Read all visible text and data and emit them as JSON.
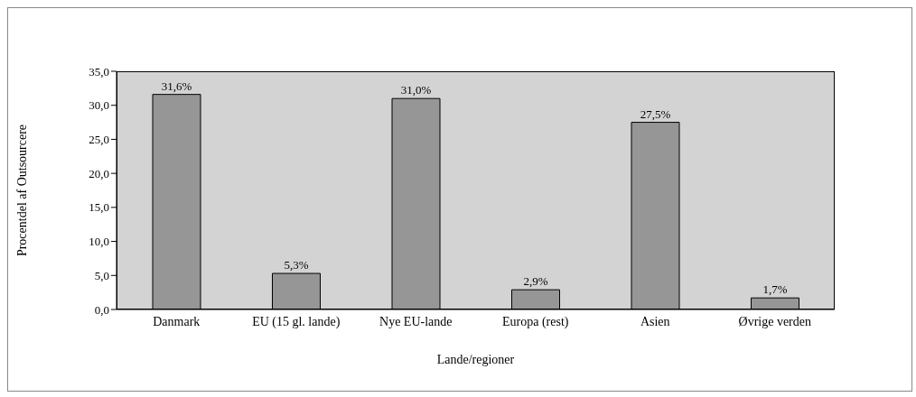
{
  "chart_data": {
    "type": "bar",
    "xlabel": "Lande/regioner",
    "ylabel": "Procentdel af Outsourcere",
    "categories": [
      "Danmark",
      "EU (15 gl. lande)",
      "Nye EU-lande",
      "Europa (rest)",
      "Asien",
      "Øvrige verden"
    ],
    "values": [
      31.6,
      5.3,
      31.0,
      2.9,
      27.5,
      1.7
    ],
    "value_labels": [
      "31,6%",
      "5,3%",
      "31,0%",
      "2,9%",
      "27,5%",
      "1,7%"
    ],
    "color": "#969696",
    "ylim": [
      0,
      35
    ],
    "yticks": [
      {
        "value": 0,
        "label": "0,0"
      },
      {
        "value": 5,
        "label": "5,0"
      },
      {
        "value": 10,
        "label": "10,0"
      },
      {
        "value": 15,
        "label": "15,0"
      },
      {
        "value": 20,
        "label": "20,0"
      },
      {
        "value": 25,
        "label": "25,0"
      },
      {
        "value": 30,
        "label": "30,0"
      },
      {
        "value": 35,
        "label": "35,0"
      }
    ],
    "grid": false
  }
}
